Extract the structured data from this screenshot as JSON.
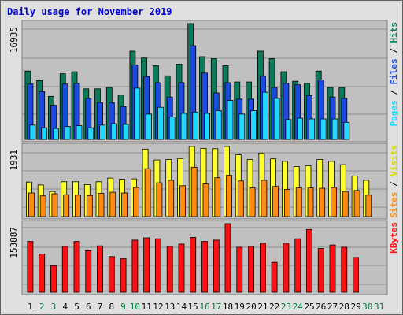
{
  "title": "Daily usage for November 2019",
  "colors": {
    "background": "#e0e0e0",
    "plot_background": "#c0c0c0",
    "grid": "#8c8c8c",
    "hits": "#0a7a5a",
    "files": "#1a4ae0",
    "pages": "#20d8ff",
    "visits": "#ffff30",
    "sites": "#ff8c10",
    "kbytes": "#ff1010",
    "weekday_label": "#000000",
    "weekend_label": "#00783c"
  },
  "right_labels": {
    "top": [
      {
        "text": "Pages",
        "color": "#20d8ff"
      },
      {
        "text": " / ",
        "color": "#000000"
      },
      {
        "text": "Files",
        "color": "#1a4ae0"
      },
      {
        "text": " / ",
        "color": "#000000"
      },
      {
        "text": "Hits",
        "color": "#0a7a5a"
      }
    ],
    "middle": [
      {
        "text": "Sites",
        "color": "#ff8c10"
      },
      {
        "text": " / ",
        "color": "#000000"
      },
      {
        "text": "Visits",
        "color": "#d8d800"
      }
    ],
    "bottom": [
      {
        "text": "KBytes",
        "color": "#ff1010"
      }
    ]
  },
  "chart_data": [
    {
      "type": "bar",
      "panel": "hits-files-pages",
      "max_label": "16935",
      "ylim": [
        0,
        16935
      ],
      "categories": [
        "1",
        "2",
        "3",
        "4",
        "5",
        "6",
        "7",
        "8",
        "9",
        "10",
        "11",
        "12",
        "13",
        "14",
        "15",
        "16",
        "17",
        "18",
        "19",
        "20",
        "21",
        "22",
        "23",
        "24",
        "25",
        "26",
        "27",
        "28",
        "29",
        "30",
        "31"
      ],
      "series": [
        {
          "name": "Hits",
          "values": [
            10000,
            8600,
            6300,
            9600,
            9900,
            7400,
            7400,
            7600,
            6500,
            12900,
            11900,
            10800,
            9300,
            11000,
            16935,
            12100,
            11800,
            10800,
            8400,
            8400,
            12900,
            11800,
            9900,
            8500,
            8200,
            10000,
            7600,
            7600,
            0,
            0,
            0
          ]
        },
        {
          "name": "Files",
          "values": [
            8100,
            7000,
            5000,
            8100,
            8200,
            6000,
            5400,
            5400,
            4800,
            10900,
            9200,
            8300,
            6200,
            8300,
            13700,
            9700,
            6800,
            8300,
            5900,
            5900,
            9300,
            7600,
            8200,
            8000,
            6400,
            8700,
            6200,
            6000,
            0,
            0,
            0
          ]
        },
        {
          "name": "Pages",
          "values": [
            2100,
            1700,
            1600,
            1900,
            2000,
            1700,
            2100,
            2300,
            2200,
            7500,
            3700,
            4700,
            3300,
            3800,
            4000,
            3800,
            4200,
            5700,
            3700,
            4200,
            6900,
            6000,
            2900,
            3100,
            3000,
            3000,
            3000,
            2500,
            0,
            0,
            0
          ]
        }
      ]
    },
    {
      "type": "bar",
      "panel": "visits-sites",
      "max_label": "1931",
      "ylim": [
        0,
        1931
      ],
      "categories": [
        "1",
        "2",
        "3",
        "4",
        "5",
        "6",
        "7",
        "8",
        "9",
        "10",
        "11",
        "12",
        "13",
        "14",
        "15",
        "16",
        "17",
        "18",
        "19",
        "20",
        "21",
        "22",
        "23",
        "24",
        "25",
        "26",
        "27",
        "28",
        "29",
        "30",
        "31"
      ],
      "series": [
        {
          "name": "Visits",
          "values": [
            950,
            870,
            690,
            960,
            960,
            880,
            960,
            1060,
            1030,
            1040,
            1860,
            1560,
            1570,
            1600,
            1931,
            1880,
            1870,
            1931,
            1700,
            1570,
            1750,
            1590,
            1520,
            1380,
            1400,
            1570,
            1520,
            1430,
            1120,
            1000,
            0
          ]
        },
        {
          "name": "Sites",
          "values": [
            650,
            570,
            630,
            600,
            590,
            580,
            640,
            670,
            650,
            800,
            1320,
            930,
            1000,
            850,
            1360,
            900,
            1070,
            1140,
            980,
            790,
            1000,
            830,
            750,
            790,
            790,
            780,
            800,
            690,
            720,
            590,
            0
          ]
        }
      ]
    },
    {
      "type": "bar",
      "panel": "kbytes",
      "max_label": "153887",
      "ylim": [
        0,
        153887
      ],
      "categories": [
        "1",
        "2",
        "3",
        "4",
        "5",
        "6",
        "7",
        "8",
        "9",
        "10",
        "11",
        "12",
        "13",
        "14",
        "15",
        "16",
        "17",
        "18",
        "19",
        "20",
        "21",
        "22",
        "23",
        "24",
        "25",
        "26",
        "27",
        "28",
        "29",
        "30",
        "31"
      ],
      "series": [
        {
          "name": "KBytes",
          "values": [
            114000,
            86000,
            59000,
            103000,
            114000,
            93000,
            104000,
            80000,
            75000,
            117000,
            122000,
            120000,
            103000,
            108000,
            123000,
            114000,
            117000,
            153887,
            101000,
            103000,
            110000,
            67000,
            110000,
            120000,
            141000,
            98000,
            106000,
            101000,
            78000,
            0,
            0
          ]
        }
      ]
    }
  ],
  "day_labels": [
    {
      "text": "1",
      "weekend": false
    },
    {
      "text": "2",
      "weekend": true
    },
    {
      "text": "3",
      "weekend": true
    },
    {
      "text": "4",
      "weekend": false
    },
    {
      "text": "5",
      "weekend": false
    },
    {
      "text": "6",
      "weekend": false
    },
    {
      "text": "7",
      "weekend": false
    },
    {
      "text": "8",
      "weekend": false
    },
    {
      "text": "9",
      "weekend": true
    },
    {
      "text": "10",
      "weekend": true
    },
    {
      "text": "11",
      "weekend": false
    },
    {
      "text": "12",
      "weekend": false
    },
    {
      "text": "13",
      "weekend": false
    },
    {
      "text": "14",
      "weekend": false
    },
    {
      "text": "15",
      "weekend": false
    },
    {
      "text": "16",
      "weekend": true
    },
    {
      "text": "17",
      "weekend": true
    },
    {
      "text": "18",
      "weekend": false
    },
    {
      "text": "19",
      "weekend": false
    },
    {
      "text": "20",
      "weekend": false
    },
    {
      "text": "21",
      "weekend": false
    },
    {
      "text": "22",
      "weekend": false
    },
    {
      "text": "23",
      "weekend": true
    },
    {
      "text": "24",
      "weekend": true
    },
    {
      "text": "25",
      "weekend": false
    },
    {
      "text": "26",
      "weekend": false
    },
    {
      "text": "27",
      "weekend": false
    },
    {
      "text": "28",
      "weekend": false
    },
    {
      "text": "29",
      "weekend": false
    },
    {
      "text": "30",
      "weekend": true
    },
    {
      "text": "31",
      "weekend": true
    }
  ]
}
